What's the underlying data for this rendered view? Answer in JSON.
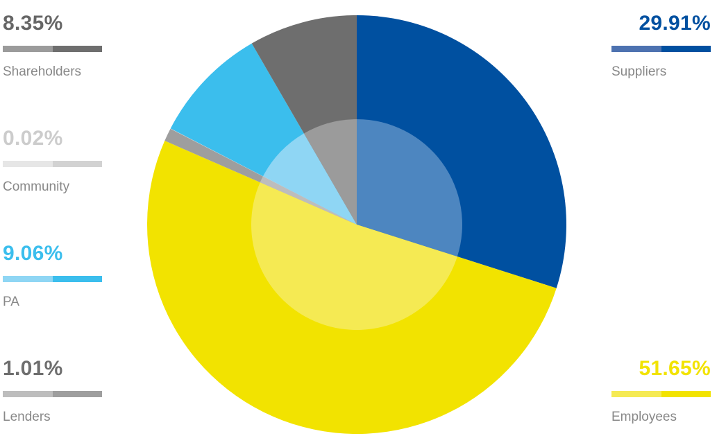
{
  "chart_data": {
    "type": "pie",
    "slices": [
      {
        "label": "Suppliers",
        "value": 29.91,
        "display": "29.91%",
        "color": "#0050a0",
        "light": "#4d86c0"
      },
      {
        "label": "Employees",
        "value": 51.65,
        "display": "51.65%",
        "color": "#f2e300",
        "light": "#f5ea53"
      },
      {
        "label": "Lenders",
        "value": 1.01,
        "display": "1.01%",
        "color": "#9e9e9e",
        "light": "#bdbdbd"
      },
      {
        "label": "Community",
        "value": 0.02,
        "display": "0.02%",
        "color": "#d2d2d2",
        "light": "#e6e6e6"
      },
      {
        "label": "PA",
        "value": 9.06,
        "display": "9.06%",
        "color": "#3bbeed",
        "light": "#8fd6f4"
      },
      {
        "label": "Shareholders",
        "value": 8.35,
        "display": "8.35%",
        "color": "#6e6e6e",
        "light": "#9b9b9b"
      }
    ],
    "start_angle_deg": 0,
    "direction": "clockwise",
    "inner_highlight": true
  },
  "legend": {
    "shareholders": {
      "pct": "8.35%",
      "label": "Shareholders",
      "pct_color": "#666666",
      "bar_light": "#9b9b9b",
      "bar_dark": "#6e6e6e"
    },
    "community": {
      "pct": "0.02%",
      "label": "Community",
      "pct_color": "#cccccc",
      "bar_light": "#e6e6e6",
      "bar_dark": "#d2d2d2"
    },
    "pa": {
      "pct": "9.06%",
      "label": "PA",
      "pct_color": "#3bbeed",
      "bar_light": "#8fd6f4",
      "bar_dark": "#3bbeed"
    },
    "lenders": {
      "pct": "1.01%",
      "label": "Lenders",
      "pct_color": "#6e6e6e",
      "bar_light": "#bdbdbd",
      "bar_dark": "#9e9e9e"
    },
    "suppliers": {
      "pct": "29.91%",
      "label": "Suppliers",
      "pct_color": "#0050a0",
      "bar_light": "#4d72b0",
      "bar_dark": "#0050a0"
    },
    "employees": {
      "pct": "51.65%",
      "label": "Employees",
      "pct_color": "#f2e300",
      "bar_light": "#f5ea53",
      "bar_dark": "#f2e300"
    }
  }
}
